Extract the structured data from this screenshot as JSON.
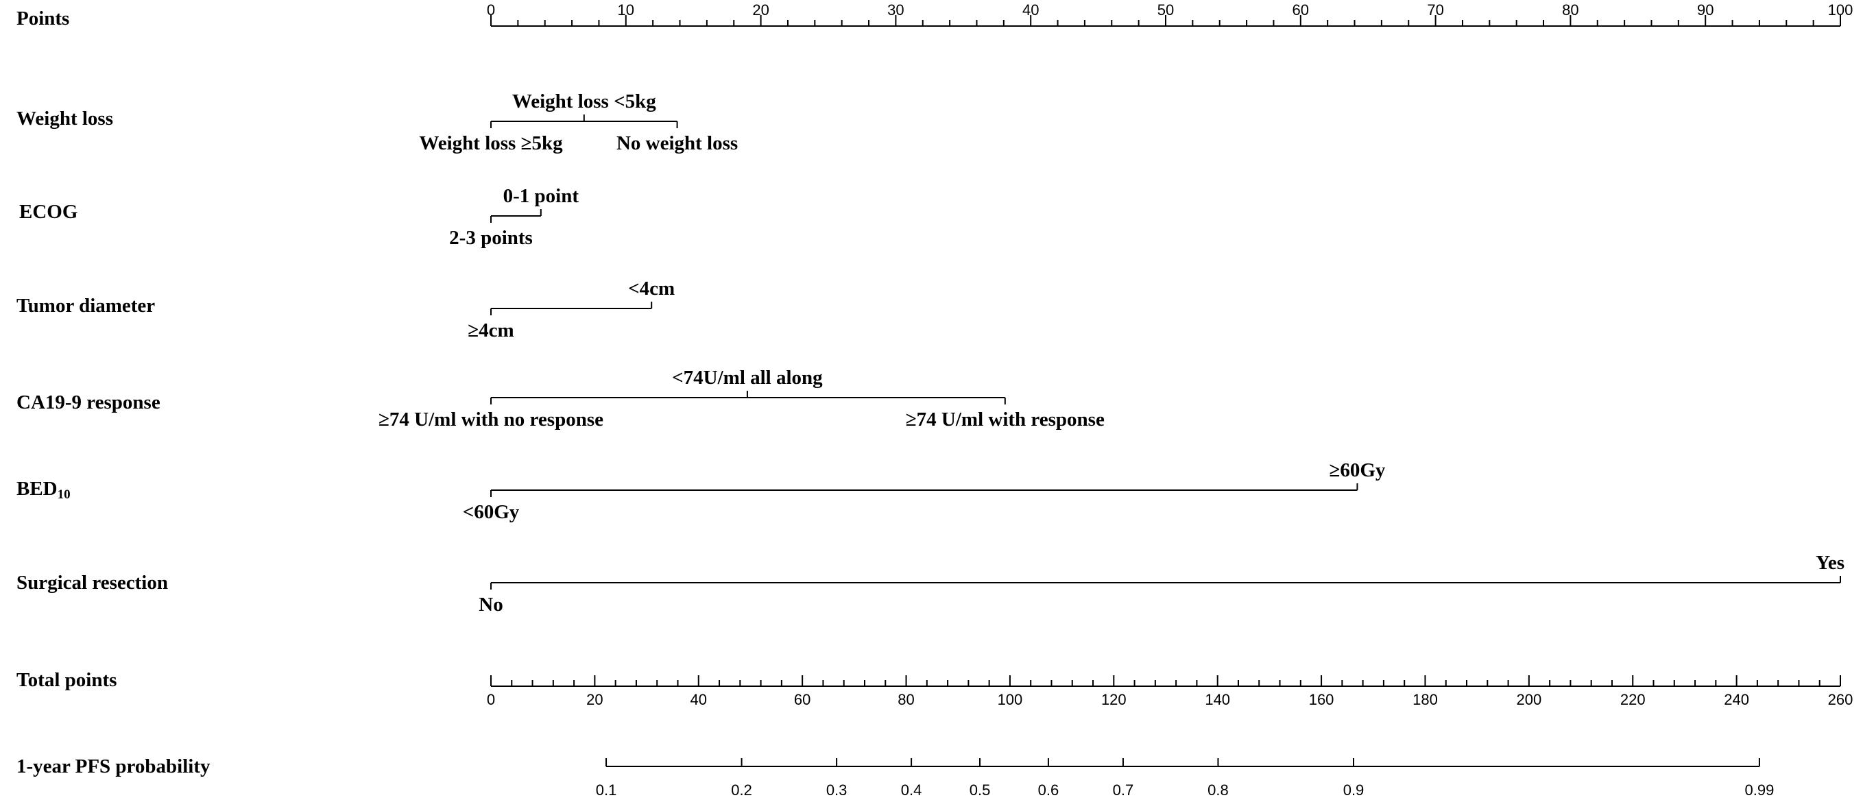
{
  "chart_data": {
    "type": "nomogram",
    "points_scale": {
      "label": "Points",
      "min": 0,
      "max": 100,
      "tick_labels": [
        "0",
        "10",
        "20",
        "30",
        "40",
        "50",
        "60",
        "70",
        "80",
        "90",
        "100"
      ],
      "minor_tick_step": 2
    },
    "variables": [
      {
        "key": "weight",
        "label": "Weight loss",
        "levels": [
          {
            "label": "Weight loss ≥5kg",
            "points": 0,
            "pos": "below"
          },
          {
            "label": "Weight loss <5kg",
            "points": 6.9,
            "pos": "above"
          },
          {
            "label": "No weight loss",
            "points": 13.8,
            "pos": "below"
          }
        ]
      },
      {
        "key": "ecog",
        "label": "ECOG",
        "levels": [
          {
            "label": "2-3 points",
            "points": 0,
            "pos": "below"
          },
          {
            "label": "0-1 point",
            "points": 3.7,
            "pos": "above"
          }
        ]
      },
      {
        "key": "tumor",
        "label": "Tumor diameter",
        "levels": [
          {
            "label": "≥4cm",
            "points": 0,
            "pos": "below"
          },
          {
            "label": "<4cm",
            "points": 11.9,
            "pos": "above"
          }
        ]
      },
      {
        "key": "ca199",
        "label": "CA19-9 response",
        "levels": [
          {
            "label": "≥74 U/ml with no response",
            "points": 0,
            "pos": "below"
          },
          {
            "label": "<74U/ml all along",
            "points": 19.0,
            "pos": "above"
          },
          {
            "label": "≥74 U/ml with response",
            "points": 38.1,
            "pos": "below"
          }
        ]
      },
      {
        "key": "bed",
        "label": "BED",
        "label_sub": "10",
        "levels": [
          {
            "label": "<60Gy",
            "points": 0,
            "pos": "below"
          },
          {
            "label": "≥60Gy",
            "points": 64.2,
            "pos": "above"
          }
        ]
      },
      {
        "key": "surgery",
        "label": "Surgical resection",
        "levels": [
          {
            "label": "No",
            "points": 0,
            "pos": "below"
          },
          {
            "label": "Yes",
            "points": 100,
            "pos": "above"
          }
        ]
      }
    ],
    "total_points_scale": {
      "label": "Total points",
      "min": 0,
      "max": 260,
      "tick_labels": [
        "0",
        "20",
        "40",
        "60",
        "80",
        "100",
        "120",
        "140",
        "160",
        "180",
        "200",
        "220",
        "240",
        "260"
      ],
      "minor_tick_step": 4
    },
    "probability_scale": {
      "label": "1-year PFS probability",
      "ticks": [
        {
          "label": "0.1",
          "total_points": 22.2
        },
        {
          "label": "0.2",
          "total_points": 48.3
        },
        {
          "label": "0.3",
          "total_points": 66.6
        },
        {
          "label": "0.4",
          "total_points": 81.0
        },
        {
          "label": "0.5",
          "total_points": 94.2
        },
        {
          "label": "0.6",
          "total_points": 107.4
        },
        {
          "label": "0.7",
          "total_points": 121.8
        },
        {
          "label": "0.8",
          "total_points": 140.1
        },
        {
          "label": "0.9",
          "total_points": 166.2
        },
        {
          "label": "0.99",
          "total_points": 244.4
        }
      ]
    }
  }
}
